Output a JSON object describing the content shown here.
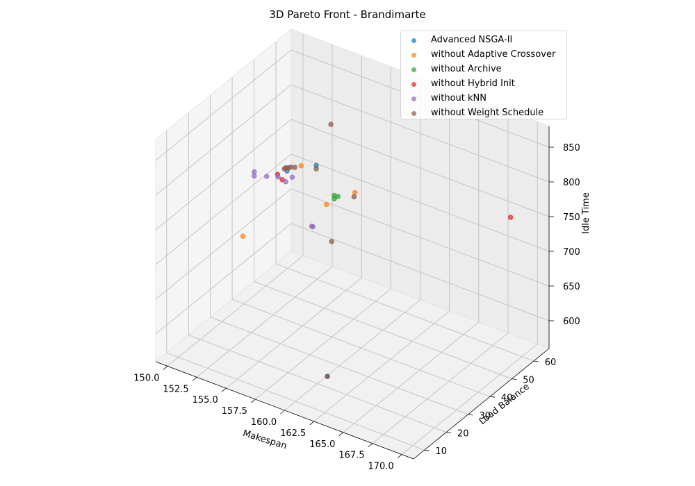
{
  "title": "3D Pareto Front - Brandimarte",
  "chart_data": {
    "type": "scatter3d",
    "title": "3D Pareto Front - Brandimarte",
    "xlabel": "Makespan",
    "ylabel": "Load Balance",
    "zlabel": "Idle Time",
    "xlim": [
      149,
      171
    ],
    "ylim": [
      5,
      67
    ],
    "zlim": [
      560,
      880
    ],
    "xticks": [
      "150.0",
      "152.5",
      "155.0",
      "157.5",
      "160.0",
      "162.5",
      "165.0",
      "167.5",
      "170.0"
    ],
    "yticks": [
      "10",
      "20",
      "30",
      "40",
      "50",
      "60"
    ],
    "zticks": [
      "600",
      "650",
      "700",
      "750",
      "800",
      "850"
    ],
    "grid": true,
    "legend_position": "upper-right",
    "series": [
      {
        "name": "Advanced NSGA-II",
        "color": "#1f77b4",
        "points": [
          [
            153.8,
            52.7,
            751
          ],
          [
            152.3,
            47.4,
            747
          ],
          [
            163.3,
            6.9,
            625
          ]
        ]
      },
      {
        "name": "without Adaptive Crossover",
        "color": "#ff7f0e",
        "points": [
          [
            153.0,
            50.1,
            752
          ],
          [
            158.0,
            47.9,
            751
          ],
          [
            153.4,
            21.3,
            727
          ],
          [
            156.5,
            42.9,
            737
          ]
        ]
      },
      {
        "name": "without Archive",
        "color": "#2ca02c",
        "points": [
          [
            157.0,
            43.8,
            751
          ],
          [
            157.0,
            43.8,
            746
          ],
          [
            157.3,
            43.9,
            751
          ]
        ]
      },
      {
        "name": "without Hybrid Init",
        "color": "#d62728",
        "points": [
          [
            151.4,
            47.9,
            735
          ],
          [
            151.8,
            47.9,
            730
          ],
          [
            169.6,
            56.9,
            766
          ]
        ]
      },
      {
        "name": "without kNN",
        "color": "#9467bd",
        "points": [
          [
            149.8,
            45.8,
            734
          ],
          [
            149.8,
            45.8,
            728
          ],
          [
            150.6,
            47.2,
            729
          ],
          [
            151.5,
            47.6,
            733
          ],
          [
            152.5,
            48.7,
            736
          ],
          [
            152.1,
            47.9,
            729
          ],
          [
            157.6,
            30.8,
            743
          ],
          [
            157.5,
            30.8,
            743
          ]
        ]
      },
      {
        "name": "without Weight Schedule",
        "color": "#8c564b",
        "points": [
          [
            152.0,
            47.8,
            747
          ],
          [
            152.1,
            47.9,
            749
          ],
          [
            152.3,
            48.0,
            750
          ],
          [
            152.5,
            48.1,
            752
          ],
          [
            152.8,
            48.3,
            753
          ],
          [
            154.2,
            50.6,
            754
          ],
          [
            155.0,
            53.0,
            817
          ],
          [
            158.5,
            44.8,
            756
          ],
          [
            159.2,
            30.8,
            732
          ],
          [
            163.3,
            6.9,
            625
          ]
        ]
      }
    ]
  }
}
